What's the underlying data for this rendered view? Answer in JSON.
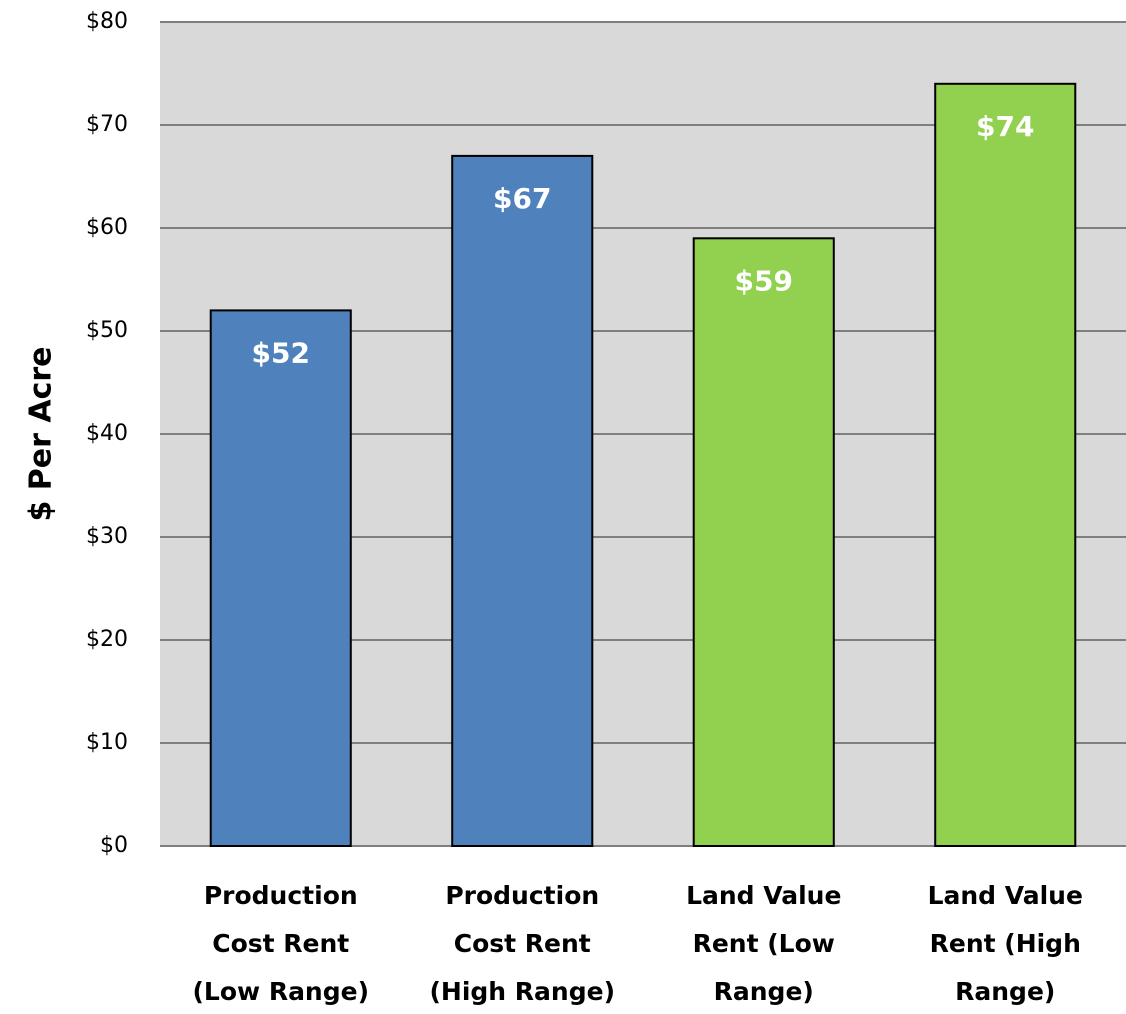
{
  "chart_data": {
    "type": "bar",
    "y_label": "$ Per Acre",
    "categories": [
      "Production\nCost Rent\n(Low Range)",
      "Production\nCost Rent\n(High Range)",
      "Land Value\nRent (Low\nRange)",
      "Land Value\nRent (High\nRange)"
    ],
    "values": [
      52,
      67,
      59,
      74
    ],
    "value_labels": [
      "$52",
      "$67",
      "$59",
      "$74"
    ],
    "colors": [
      "#4f81bd",
      "#4f81bd",
      "#92d050",
      "#92d050"
    ],
    "ylim": [
      0,
      80
    ],
    "yticks": [
      {
        "value": 0,
        "label": "$0"
      },
      {
        "value": 10,
        "label": "$10"
      },
      {
        "value": 20,
        "label": "$20"
      },
      {
        "value": 30,
        "label": "$30"
      },
      {
        "value": 40,
        "label": "$40"
      },
      {
        "value": 50,
        "label": "$50"
      },
      {
        "value": 60,
        "label": "$60"
      },
      {
        "value": 70,
        "label": "$70"
      },
      {
        "value": 80,
        "label": "$80"
      }
    ],
    "grid": true
  }
}
